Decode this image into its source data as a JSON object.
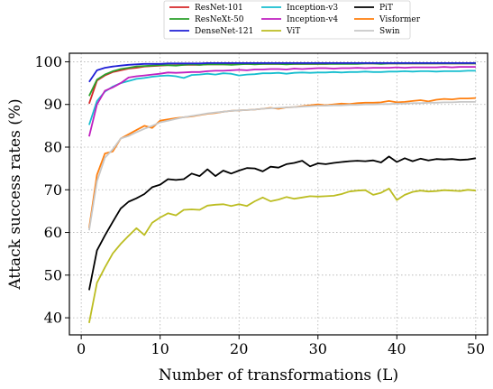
{
  "chart_data": {
    "type": "line",
    "title": "",
    "xlabel": "Number of transformations (L)",
    "ylabel": "Attack success rates (%)",
    "xlim": [
      -1.5,
      51.5
    ],
    "ylim": [
      36,
      102
    ],
    "xticks": [
      0,
      10,
      20,
      30,
      40,
      50
    ],
    "yticks": [
      40,
      50,
      60,
      70,
      80,
      90,
      100
    ],
    "grid": true,
    "legend_position": "top-center",
    "x": [
      1,
      2,
      3,
      4,
      5,
      6,
      7,
      8,
      9,
      10,
      11,
      12,
      13,
      14,
      15,
      16,
      17,
      18,
      19,
      20,
      21,
      22,
      23,
      24,
      25,
      26,
      27,
      28,
      29,
      30,
      31,
      32,
      33,
      34,
      35,
      36,
      37,
      38,
      39,
      40,
      41,
      42,
      43,
      44,
      45,
      46,
      47,
      48,
      49,
      50
    ],
    "series": [
      {
        "name": "ResNet-101",
        "color": "#d62728",
        "values": [
          90.2,
          95.6,
          96.8,
          97.6,
          98.0,
          98.4,
          98.6,
          98.9,
          99.0,
          99.1,
          99.2,
          99.2,
          99.3,
          99.3,
          99.3,
          99.4,
          99.4,
          99.4,
          99.4,
          99.5,
          99.5,
          99.5,
          99.5,
          99.5,
          99.5,
          99.5,
          99.5,
          99.5,
          99.5,
          99.5,
          99.5,
          99.6,
          99.6,
          99.6,
          99.6,
          99.6,
          99.6,
          99.6,
          99.6,
          99.6,
          99.6,
          99.6,
          99.6,
          99.6,
          99.6,
          99.6,
          99.6,
          99.6,
          99.6,
          99.6
        ]
      },
      {
        "name": "ResNeXt-50",
        "color": "#2ca02c",
        "values": [
          92.0,
          95.8,
          97.0,
          97.8,
          98.3,
          98.6,
          98.9,
          99.0,
          99.1,
          99.2,
          99.2,
          99.1,
          99.3,
          99.4,
          99.3,
          99.4,
          99.4,
          99.4,
          99.3,
          99.4,
          99.5,
          99.4,
          99.5,
          99.5,
          99.5,
          99.4,
          99.5,
          99.5,
          99.5,
          99.5,
          99.5,
          99.5,
          99.5,
          99.5,
          99.5,
          99.6,
          99.6,
          99.5,
          99.6,
          99.6,
          99.6,
          99.6,
          99.6,
          99.6,
          99.6,
          99.6,
          99.6,
          99.6,
          99.6,
          99.6
        ]
      },
      {
        "name": "DenseNet-121",
        "color": "#1f1fd6",
        "values": [
          95.3,
          98.0,
          98.6,
          98.9,
          99.1,
          99.3,
          99.4,
          99.5,
          99.5,
          99.5,
          99.6,
          99.6,
          99.6,
          99.6,
          99.6,
          99.7,
          99.7,
          99.7,
          99.7,
          99.7,
          99.7,
          99.7,
          99.7,
          99.7,
          99.7,
          99.7,
          99.7,
          99.7,
          99.7,
          99.7,
          99.7,
          99.7,
          99.7,
          99.7,
          99.7,
          99.7,
          99.7,
          99.7,
          99.7,
          99.7,
          99.7,
          99.7,
          99.7,
          99.7,
          99.7,
          99.7,
          99.7,
          99.7,
          99.7,
          99.7
        ]
      },
      {
        "name": "Inception-v3",
        "color": "#17becf",
        "values": [
          85.2,
          90.8,
          93.0,
          94.2,
          95.0,
          95.5,
          96.0,
          96.2,
          96.5,
          96.7,
          96.8,
          96.6,
          96.2,
          96.9,
          97.0,
          97.2,
          97.0,
          97.3,
          97.2,
          96.8,
          97.0,
          97.1,
          97.3,
          97.3,
          97.4,
          97.2,
          97.4,
          97.5,
          97.4,
          97.5,
          97.5,
          97.6,
          97.5,
          97.6,
          97.6,
          97.7,
          97.6,
          97.6,
          97.7,
          97.7,
          97.8,
          97.7,
          97.8,
          97.8,
          97.7,
          97.8,
          97.8,
          97.8,
          97.9,
          97.9
        ]
      },
      {
        "name": "Inception-v4",
        "color": "#c020c0",
        "values": [
          82.5,
          90.0,
          93.2,
          94.0,
          95.0,
          96.3,
          96.6,
          96.8,
          97.0,
          97.2,
          97.5,
          97.4,
          97.5,
          97.6,
          97.6,
          97.8,
          97.9,
          97.9,
          98.0,
          98.1,
          98.0,
          98.2,
          98.2,
          98.3,
          98.3,
          98.2,
          98.4,
          98.3,
          98.4,
          98.5,
          98.5,
          98.4,
          98.5,
          98.5,
          98.6,
          98.5,
          98.6,
          98.6,
          98.6,
          98.7,
          98.6,
          98.7,
          98.7,
          98.7,
          98.7,
          98.8,
          98.7,
          98.8,
          98.8,
          98.8
        ]
      },
      {
        "name": "PiT",
        "color": "#000000",
        "values": [
          46.5,
          55.8,
          59.3,
          62.5,
          65.6,
          67.2,
          68.0,
          69.0,
          70.6,
          71.2,
          72.5,
          72.3,
          72.5,
          73.8,
          73.2,
          74.8,
          73.2,
          74.5,
          73.8,
          74.5,
          75.1,
          75.0,
          74.3,
          75.4,
          75.2,
          76.0,
          76.3,
          76.8,
          75.5,
          76.2,
          76.0,
          76.3,
          76.5,
          76.7,
          76.8,
          76.7,
          76.9,
          76.4,
          77.8,
          76.5,
          77.4,
          76.7,
          77.3,
          76.9,
          77.2,
          77.1,
          77.2,
          77.0,
          77.1,
          77.4
        ]
      },
      {
        "name": "ViT",
        "color": "#bcbd22",
        "values": [
          38.8,
          48.2,
          51.8,
          55.1,
          57.3,
          59.2,
          61.0,
          59.4,
          62.3,
          63.5,
          64.5,
          64.0,
          65.3,
          65.4,
          65.3,
          66.3,
          66.5,
          66.6,
          66.2,
          66.6,
          66.2,
          67.3,
          68.2,
          67.3,
          67.7,
          68.3,
          67.9,
          68.2,
          68.5,
          68.4,
          68.5,
          68.6,
          69.0,
          69.6,
          69.8,
          69.9,
          68.8,
          69.3,
          70.3,
          67.6,
          68.8,
          69.5,
          69.8,
          69.6,
          69.7,
          69.9,
          69.8,
          69.7,
          70.0,
          69.8
        ]
      },
      {
        "name": "Visformer",
        "color": "#ff7f0e",
        "values": [
          61.0,
          73.5,
          78.5,
          79.0,
          82.0,
          83.0,
          84.0,
          85.0,
          84.5,
          86.2,
          86.5,
          86.8,
          87.0,
          87.2,
          87.5,
          87.8,
          88.0,
          88.3,
          88.5,
          88.6,
          88.7,
          88.8,
          89.0,
          89.2,
          89.0,
          89.3,
          89.4,
          89.6,
          89.8,
          90.0,
          89.8,
          90.0,
          90.2,
          90.1,
          90.3,
          90.4,
          90.4,
          90.5,
          90.8,
          90.5,
          90.6,
          90.8,
          91.0,
          90.7,
          91.1,
          91.3,
          91.2,
          91.4,
          91.4,
          91.5
        ]
      },
      {
        "name": "Swin",
        "color": "#c8c8c8",
        "values": [
          60.5,
          72.0,
          77.5,
          79.5,
          82.0,
          82.6,
          83.5,
          84.3,
          85.0,
          85.8,
          86.2,
          86.6,
          87.0,
          87.3,
          87.6,
          87.9,
          88.1,
          88.3,
          88.5,
          88.6,
          88.7,
          88.8,
          89.0,
          89.1,
          89.2,
          89.3,
          89.4,
          89.5,
          89.6,
          89.7,
          89.7,
          89.8,
          89.8,
          89.9,
          89.9,
          90.0,
          90.0,
          90.1,
          90.1,
          90.2,
          90.2,
          90.3,
          90.3,
          90.4,
          90.4,
          90.5,
          90.5,
          90.6,
          90.6,
          90.6
        ]
      }
    ]
  }
}
